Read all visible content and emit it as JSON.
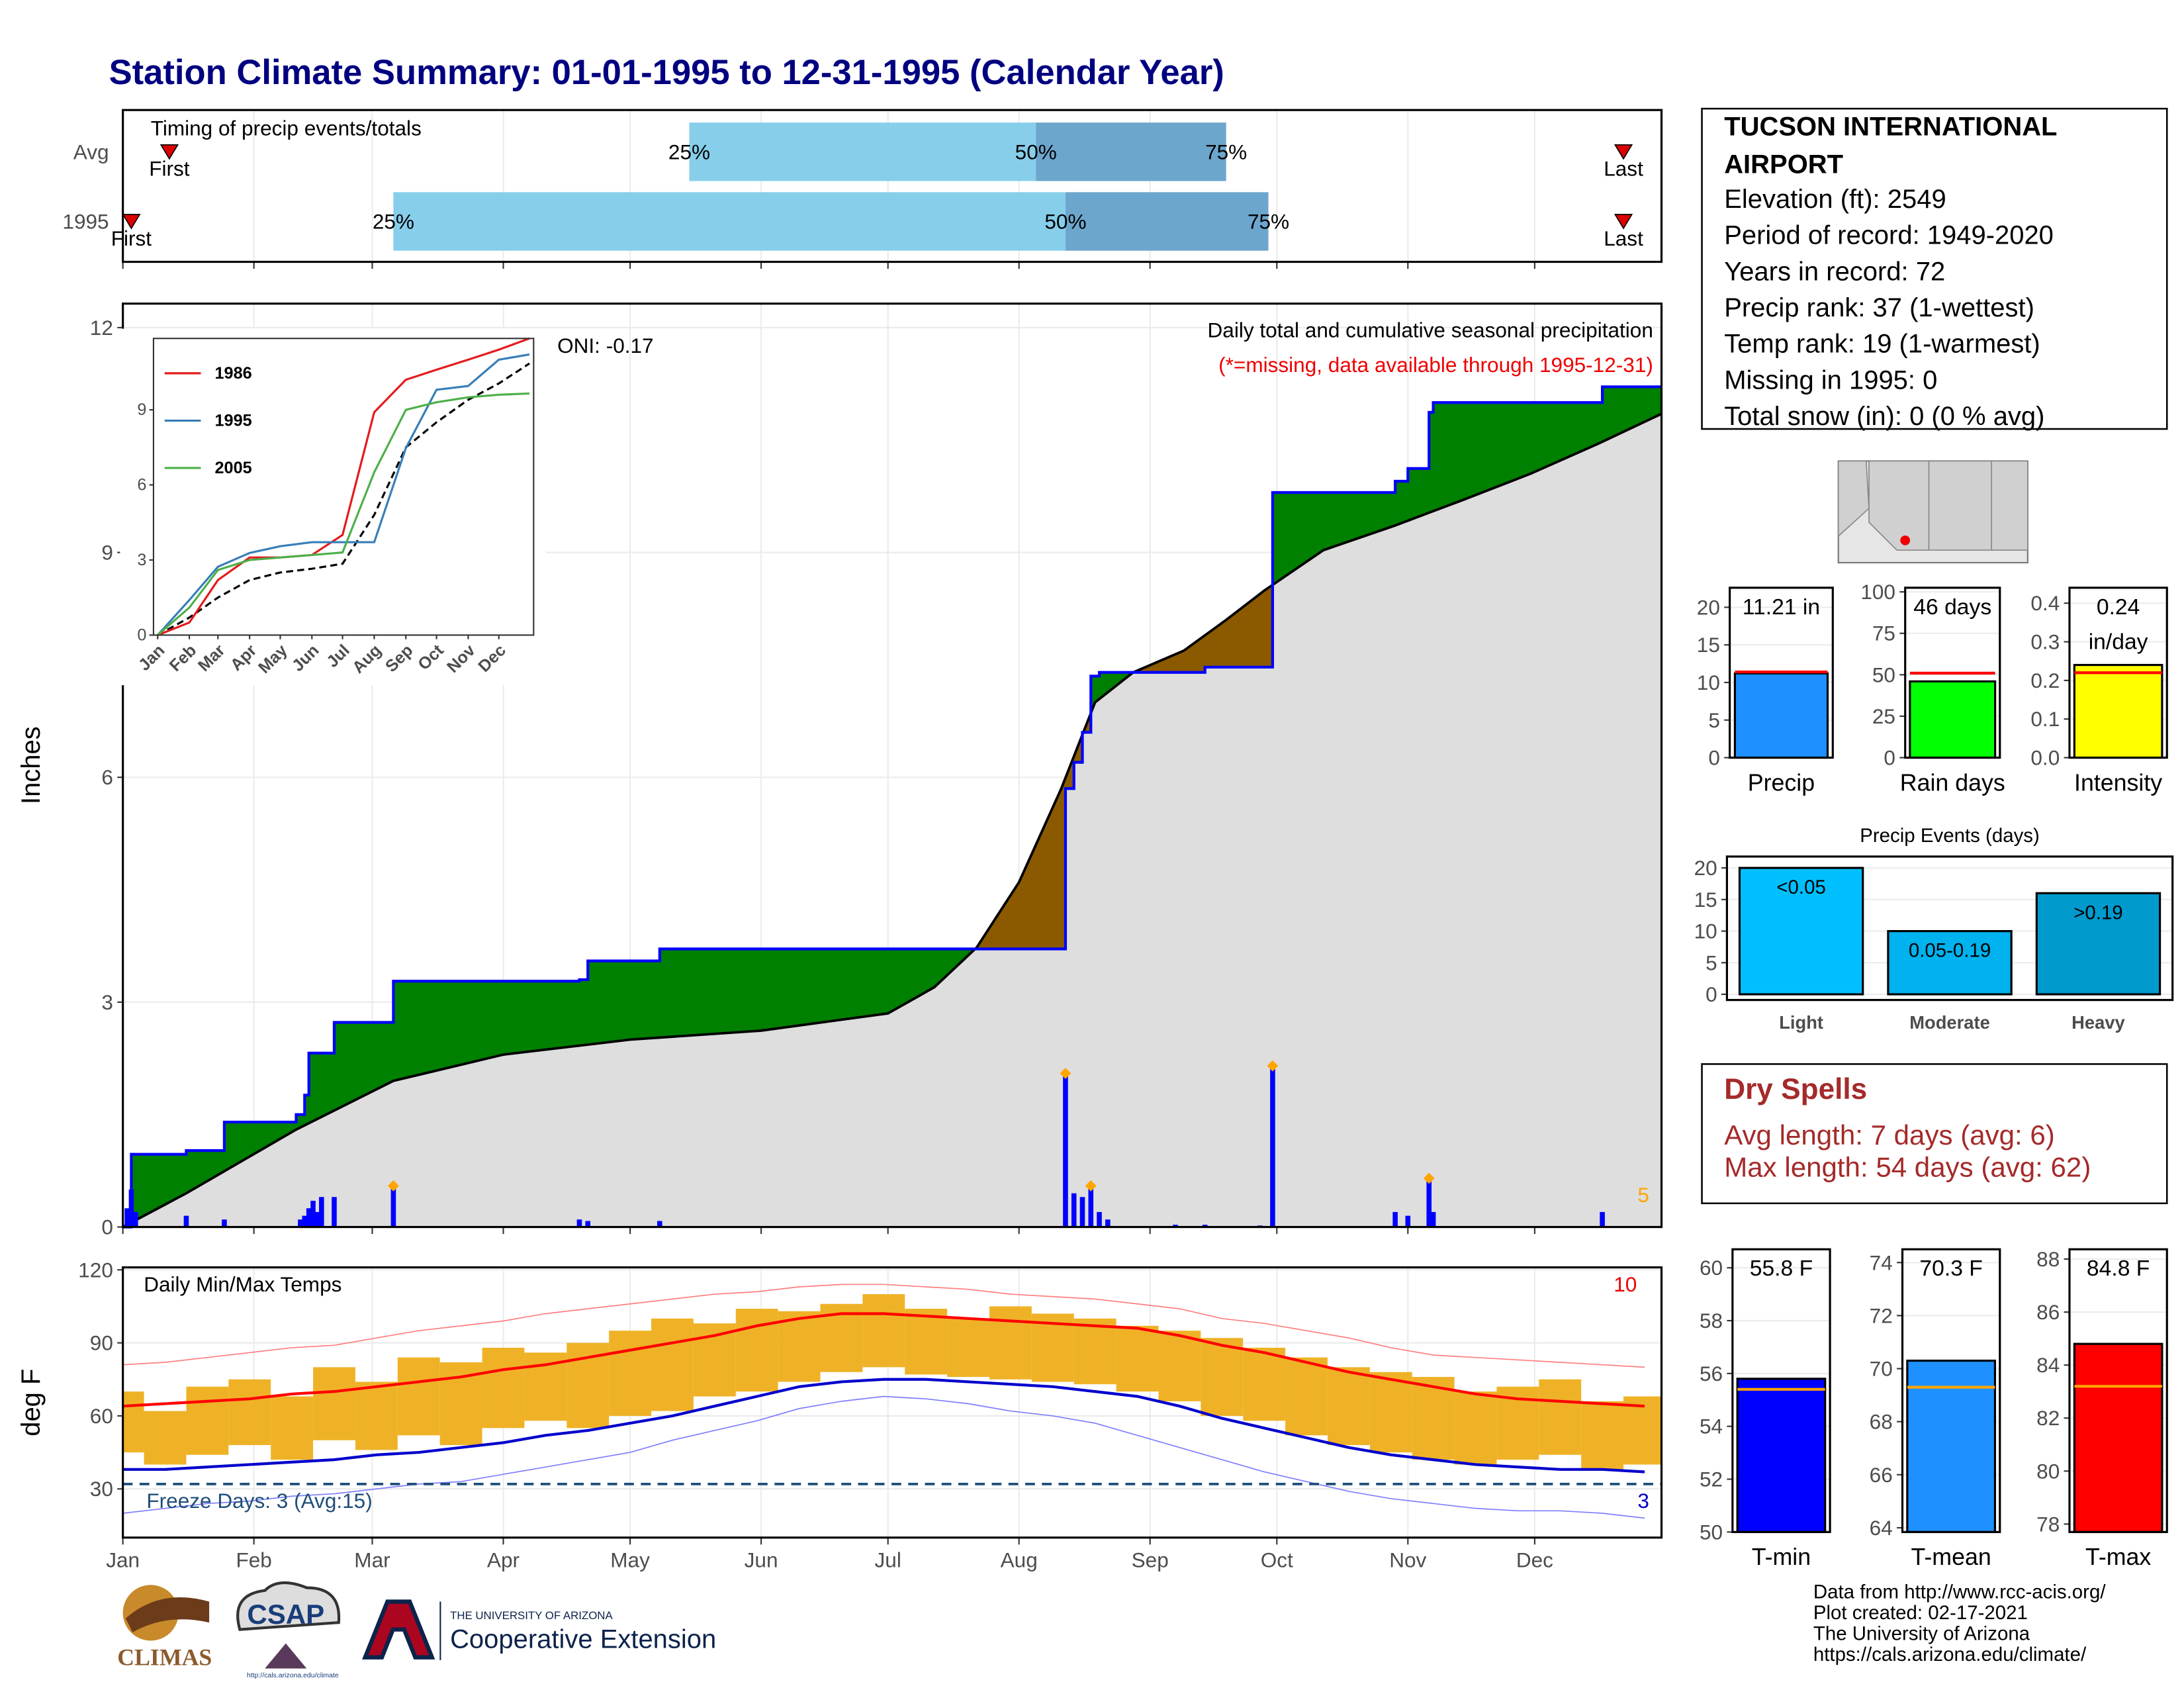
{
  "title": "Station Climate Summary: 01-01-1995 to 12-31-1995 (Calendar Year)",
  "chart_data": [
    {
      "type": "range",
      "title": "Timing of precip events/totals",
      "point_labels": [
        "First",
        "25%",
        "50%",
        "75%",
        "Last"
      ],
      "series": [
        {
          "name": "Avg",
          "values": [
            12,
            135,
            217,
            262,
            356
          ]
        },
        {
          "name": "1995",
          "values": [
            3,
            65,
            224,
            272,
            356
          ]
        }
      ],
      "colors": [
        "#87ceeb",
        "#6ca6cd"
      ],
      "marker_color": "#dd0000",
      "xlim": [
        1,
        365
      ],
      "xticks": [
        1,
        32,
        60,
        91,
        121,
        152,
        182,
        213,
        244,
        274,
        305,
        335
      ],
      "grid": true
    },
    {
      "type": "area",
      "title": "Daily total and cumulative seasonal precipitation",
      "subtitle": "(*=missing, data available through 1995-12-31)",
      "ylabel": "Inches",
      "annotation": "ONI: -0.17",
      "extreme_count": 5,
      "xlim": [
        1,
        365
      ],
      "xticks": [
        1,
        32,
        60,
        91,
        121,
        152,
        182,
        213,
        244,
        274,
        305,
        335
      ],
      "ylim": [
        0,
        12.32
      ],
      "yticks": [
        0,
        3,
        6,
        9,
        12
      ],
      "grid": true,
      "cumulative": {
        "color": "#0000ff",
        "x": [
          1,
          3,
          16,
          25,
          42,
          44,
          45,
          51,
          65,
          109,
          111,
          128,
          224,
          226,
          228,
          230,
          232,
          257,
          273,
          302,
          305,
          310,
          311,
          351,
          365
        ],
        "values": [
          0,
          0.97,
          1.02,
          1.4,
          1.5,
          1.76,
          2.32,
          2.73,
          3.28,
          3.3,
          3.55,
          3.71,
          5.85,
          6.2,
          6.6,
          7.35,
          7.4,
          7.47,
          9.8,
          9.95,
          10.12,
          10.87,
          11.0,
          11.21,
          11.21
        ]
      },
      "average": {
        "color": "#000000",
        "x": [
          1,
          16,
          42,
          65,
          91,
          121,
          152,
          182,
          193,
          203,
          213,
          223,
          231,
          240,
          252,
          262,
          271,
          285,
          302,
          318,
          334,
          350,
          365
        ],
        "values": [
          0,
          0.45,
          1.3,
          1.95,
          2.3,
          2.5,
          2.62,
          2.85,
          3.2,
          3.73,
          4.6,
          5.85,
          7.0,
          7.4,
          7.69,
          8.1,
          8.49,
          9.03,
          9.36,
          9.7,
          10.05,
          10.45,
          10.85
        ]
      },
      "daily": {
        "color": "#0000ff",
        "x": [
          2,
          3,
          4,
          16,
          25,
          43,
          44,
          45,
          46,
          47,
          48,
          51,
          65,
          109,
          111,
          128,
          224,
          226,
          228,
          230,
          232,
          234,
          250,
          257,
          270,
          273,
          302,
          305,
          310,
          311,
          351
        ],
        "values": [
          0.25,
          0.5,
          0.2,
          0.15,
          0.1,
          0.1,
          0.15,
          0.25,
          0.35,
          0.2,
          0.4,
          0.4,
          0.55,
          0.1,
          0.08,
          0.08,
          2.05,
          0.45,
          0.4,
          0.55,
          0.2,
          0.1,
          0.03,
          0.03,
          0.02,
          2.15,
          0.2,
          0.15,
          0.65,
          0.2,
          0.2
        ]
      },
      "above_color": "#008000",
      "below_color": "#8b5a00",
      "base_color": "#dedede",
      "extreme_color": "#ffa500"
    },
    {
      "type": "line",
      "legend": "top-left",
      "x": [
        1,
        32,
        60,
        91,
        121,
        152,
        182,
        213,
        244,
        274,
        305,
        335,
        365
      ],
      "series": [
        {
          "name": "1986",
          "color": "#e41a1c",
          "values": [
            0,
            0.5,
            2.2,
            3.1,
            3.1,
            3.2,
            4.0,
            8.9,
            10.2,
            10.6,
            11.0,
            11.4,
            11.85
          ]
        },
        {
          "name": "1995",
          "color": "#377eb8",
          "values": [
            0,
            1.4,
            2.73,
            3.28,
            3.55,
            3.71,
            3.71,
            3.71,
            7.47,
            9.8,
            9.95,
            11.0,
            11.21
          ]
        },
        {
          "name": "2005",
          "color": "#4daf4a",
          "values": [
            0,
            1.1,
            2.6,
            3.0,
            3.1,
            3.2,
            3.3,
            6.5,
            9.0,
            9.3,
            9.5,
            9.6,
            9.65
          ]
        }
      ],
      "average": {
        "color": "#000000",
        "values": [
          0,
          0.7,
          1.5,
          2.2,
          2.5,
          2.65,
          2.85,
          4.8,
          7.5,
          8.5,
          9.4,
          10.05,
          10.85
        ]
      },
      "xlim": [
        1,
        365
      ],
      "xticks": [
        {
          "value": 1,
          "label": "Jan"
        },
        {
          "value": 32,
          "label": "Feb"
        },
        {
          "value": 60,
          "label": "Mar"
        },
        {
          "value": 91,
          "label": "Apr"
        },
        {
          "value": 121,
          "label": "May"
        },
        {
          "value": 152,
          "label": "Jun"
        },
        {
          "value": 182,
          "label": "Jul"
        },
        {
          "value": 213,
          "label": "Aug"
        },
        {
          "value": 244,
          "label": "Sep"
        },
        {
          "value": 274,
          "label": "Oct"
        },
        {
          "value": 305,
          "label": "Nov"
        },
        {
          "value": 335,
          "label": "Dec"
        }
      ],
      "ylim": [
        0,
        11.85
      ],
      "yticks": [
        0,
        3,
        6,
        9
      ]
    },
    {
      "type": "bar",
      "categories": [
        "Precip"
      ],
      "values": [
        11.21
      ],
      "value_labels": [
        [
          "11.21 in"
        ]
      ],
      "average": [
        11.4
      ],
      "colors": [
        "#1e90ff"
      ],
      "average_color": "#ff0000",
      "ylim": [
        0,
        22.6
      ],
      "yticks": [
        0,
        5,
        10,
        15,
        20
      ],
      "grid": true
    },
    {
      "type": "bar",
      "categories": [
        "Rain days"
      ],
      "values": [
        46
      ],
      "value_labels": [
        [
          "46 days"
        ]
      ],
      "average": [
        51
      ],
      "colors": [
        "#00ff00"
      ],
      "average_color": "#ff0000",
      "ylim": [
        0,
        102.5
      ],
      "yticks": [
        0,
        25,
        50,
        75,
        100
      ],
      "grid": true
    },
    {
      "type": "bar",
      "categories": [
        "Intensity"
      ],
      "values": [
        0.24
      ],
      "value_labels": [
        [
          "0.24",
          "in/day"
        ]
      ],
      "average": [
        0.22
      ],
      "colors": [
        "#ffff00"
      ],
      "average_color": "#ff0000",
      "ylim": [
        0,
        0.44
      ],
      "yticks": [
        {
          "value": 0,
          "label": "0.0"
        },
        0.1,
        0.2,
        0.3,
        0.4
      ],
      "grid": true
    },
    {
      "type": "bar",
      "title": "Precip Events (days)",
      "categories": [
        "Light",
        "Moderate",
        "Heavy"
      ],
      "values": [
        20,
        10,
        16
      ],
      "bar_labels": [
        "<0.05",
        "0.05-0.19",
        ">0.19"
      ],
      "colors": [
        "#00bfff",
        "#00b2ee",
        "#009acd"
      ],
      "ylim": [
        -0.9,
        21.8
      ],
      "yticks": [
        0,
        5,
        10,
        15,
        20
      ],
      "grid": true
    },
    {
      "type": "band",
      "title": "Daily Min/Max Temps",
      "ylabel": "deg F",
      "record_high_count": 10,
      "freeze_label": "Freeze Days: 3 (Avg:15)",
      "record_low_count": 3,
      "freeze_line": 32,
      "xlim": [
        1,
        365
      ],
      "xticks": [
        {
          "value": 1,
          "label": "Jan"
        },
        {
          "value": 32,
          "label": "Feb"
        },
        {
          "value": 60,
          "label": "Mar"
        },
        {
          "value": 91,
          "label": "Apr"
        },
        {
          "value": 121,
          "label": "May"
        },
        {
          "value": 152,
          "label": "Jun"
        },
        {
          "value": 182,
          "label": "Jul"
        },
        {
          "value": 213,
          "label": "Aug"
        },
        {
          "value": 244,
          "label": "Sep"
        },
        {
          "value": 274,
          "label": "Oct"
        },
        {
          "value": 305,
          "label": "Nov"
        },
        {
          "value": 335,
          "label": "Dec"
        }
      ],
      "ylim": [
        10,
        121
      ],
      "yticks": [
        30,
        60,
        90,
        120
      ],
      "grid": true,
      "bar_color": "#efb227",
      "x": [
        1,
        11,
        21,
        31,
        41,
        51,
        61,
        71,
        81,
        91,
        101,
        111,
        121,
        131,
        141,
        151,
        161,
        171,
        181,
        191,
        201,
        211,
        221,
        231,
        241,
        251,
        261,
        271,
        281,
        291,
        301,
        311,
        321,
        331,
        341,
        351,
        361
      ],
      "daily_max": [
        70,
        62,
        72,
        75,
        68,
        80,
        74,
        84,
        82,
        88,
        86,
        90,
        95,
        100,
        98,
        104,
        103,
        106,
        110,
        104,
        100,
        105,
        102,
        100,
        97,
        95,
        92,
        88,
        84,
        80,
        78,
        76,
        70,
        72,
        75,
        66,
        68
      ],
      "daily_min": [
        45,
        40,
        44,
        48,
        42,
        50,
        46,
        52,
        48,
        55,
        58,
        55,
        60,
        62,
        68,
        70,
        74,
        78,
        80,
        77,
        76,
        75,
        74,
        73,
        70,
        66,
        60,
        58,
        52,
        48,
        45,
        42,
        40,
        42,
        44,
        38,
        40
      ],
      "normal_max": {
        "color": "#ff0000",
        "values": [
          64,
          65,
          66,
          67,
          69,
          70,
          72,
          74,
          76,
          79,
          81,
          84,
          87,
          90,
          93,
          97,
          100,
          102,
          102,
          101,
          100,
          99,
          98,
          97,
          96,
          93,
          89,
          86,
          82,
          78,
          75,
          72,
          69,
          67,
          66,
          65,
          64
        ]
      },
      "normal_min": {
        "color": "#0000cc",
        "values": [
          38,
          38,
          39,
          40,
          41,
          42,
          44,
          45,
          47,
          49,
          52,
          54,
          57,
          60,
          64,
          68,
          72,
          74,
          75,
          75,
          74,
          73,
          72,
          70,
          68,
          64,
          59,
          55,
          51,
          47,
          44,
          42,
          40,
          39,
          38,
          38,
          37
        ]
      },
      "record_max": {
        "color": "#ff7f7f",
        "values": [
          81,
          82,
          84,
          86,
          88,
          89,
          92,
          95,
          97,
          99,
          102,
          104,
          106,
          108,
          110,
          111,
          113,
          114,
          114,
          113,
          112,
          110,
          109,
          108,
          106,
          104,
          100,
          98,
          95,
          92,
          88,
          85,
          84,
          83,
          82,
          81,
          80
        ]
      },
      "record_min": {
        "color": "#7f7fff",
        "values": [
          20,
          22,
          24,
          25,
          27,
          28,
          30,
          32,
          33,
          36,
          39,
          42,
          45,
          50,
          54,
          58,
          63,
          66,
          68,
          67,
          65,
          62,
          60,
          57,
          52,
          47,
          42,
          37,
          33,
          29,
          26,
          24,
          22,
          21,
          21,
          20,
          18
        ]
      },
      "freeze_color": "#1f4e79"
    },
    {
      "type": "bar",
      "categories": [
        "T-min"
      ],
      "values": [
        55.8
      ],
      "value_labels": [
        [
          "55.8 F"
        ]
      ],
      "average": [
        55.4
      ],
      "colors": [
        "#0000ff"
      ],
      "average_color": "#ffa500",
      "ylim": [
        50,
        60.7
      ],
      "yticks": [
        50,
        52,
        54,
        56,
        58,
        60
      ],
      "grid": true
    },
    {
      "type": "bar",
      "categories": [
        "T-mean"
      ],
      "values": [
        70.3
      ],
      "value_labels": [
        [
          "70.3 F"
        ]
      ],
      "average": [
        69.3
      ],
      "colors": [
        "#1e90ff"
      ],
      "average_color": "#ffa500",
      "ylim": [
        63.84,
        74.5
      ],
      "yticks": [
        64,
        66,
        68,
        70,
        72,
        74
      ],
      "grid": true
    },
    {
      "type": "bar",
      "categories": [
        "T-max"
      ],
      "values": [
        84.8
      ],
      "value_labels": [
        [
          "84.8 F"
        ]
      ],
      "average": [
        83.2
      ],
      "colors": [
        "#ff0000"
      ],
      "average_color": "#ffa500",
      "ylim": [
        77.7,
        88.37
      ],
      "yticks": [
        78,
        80,
        82,
        84,
        86,
        88
      ],
      "grid": true
    }
  ],
  "station": {
    "name_lines": [
      "TUCSON INTERNATIONAL",
      "AIRPORT"
    ],
    "lines": [
      "Elevation (ft): 2549",
      "Period of record: 1949-2020",
      "Years in record: 72",
      "Precip rank: 37 (1-wettest)",
      "Temp rank: 19 (1-warmest)",
      "Missing in 1995: 0",
      "Total snow (in): 0 (0 % avg)"
    ]
  },
  "dry_spells": {
    "title": "Dry Spells",
    "lines": [
      "Avg length: 7 days (avg: 6)",
      "Max length: 54 days (avg: 62)"
    ]
  },
  "footer": [
    "Data from http://www.rcc-acis.org/",
    "Plot created: 02-17-2021",
    "The University of Arizona",
    "https://cals.arizona.edu/climate/"
  ],
  "logos": {
    "climas": "CLIMAS",
    "csap": "CSAP",
    "csap_url": "http://cals.arizona.edu/climate",
    "university": "THE UNIVERSITY OF ARIZONA",
    "extension": "Cooperative Extension"
  }
}
